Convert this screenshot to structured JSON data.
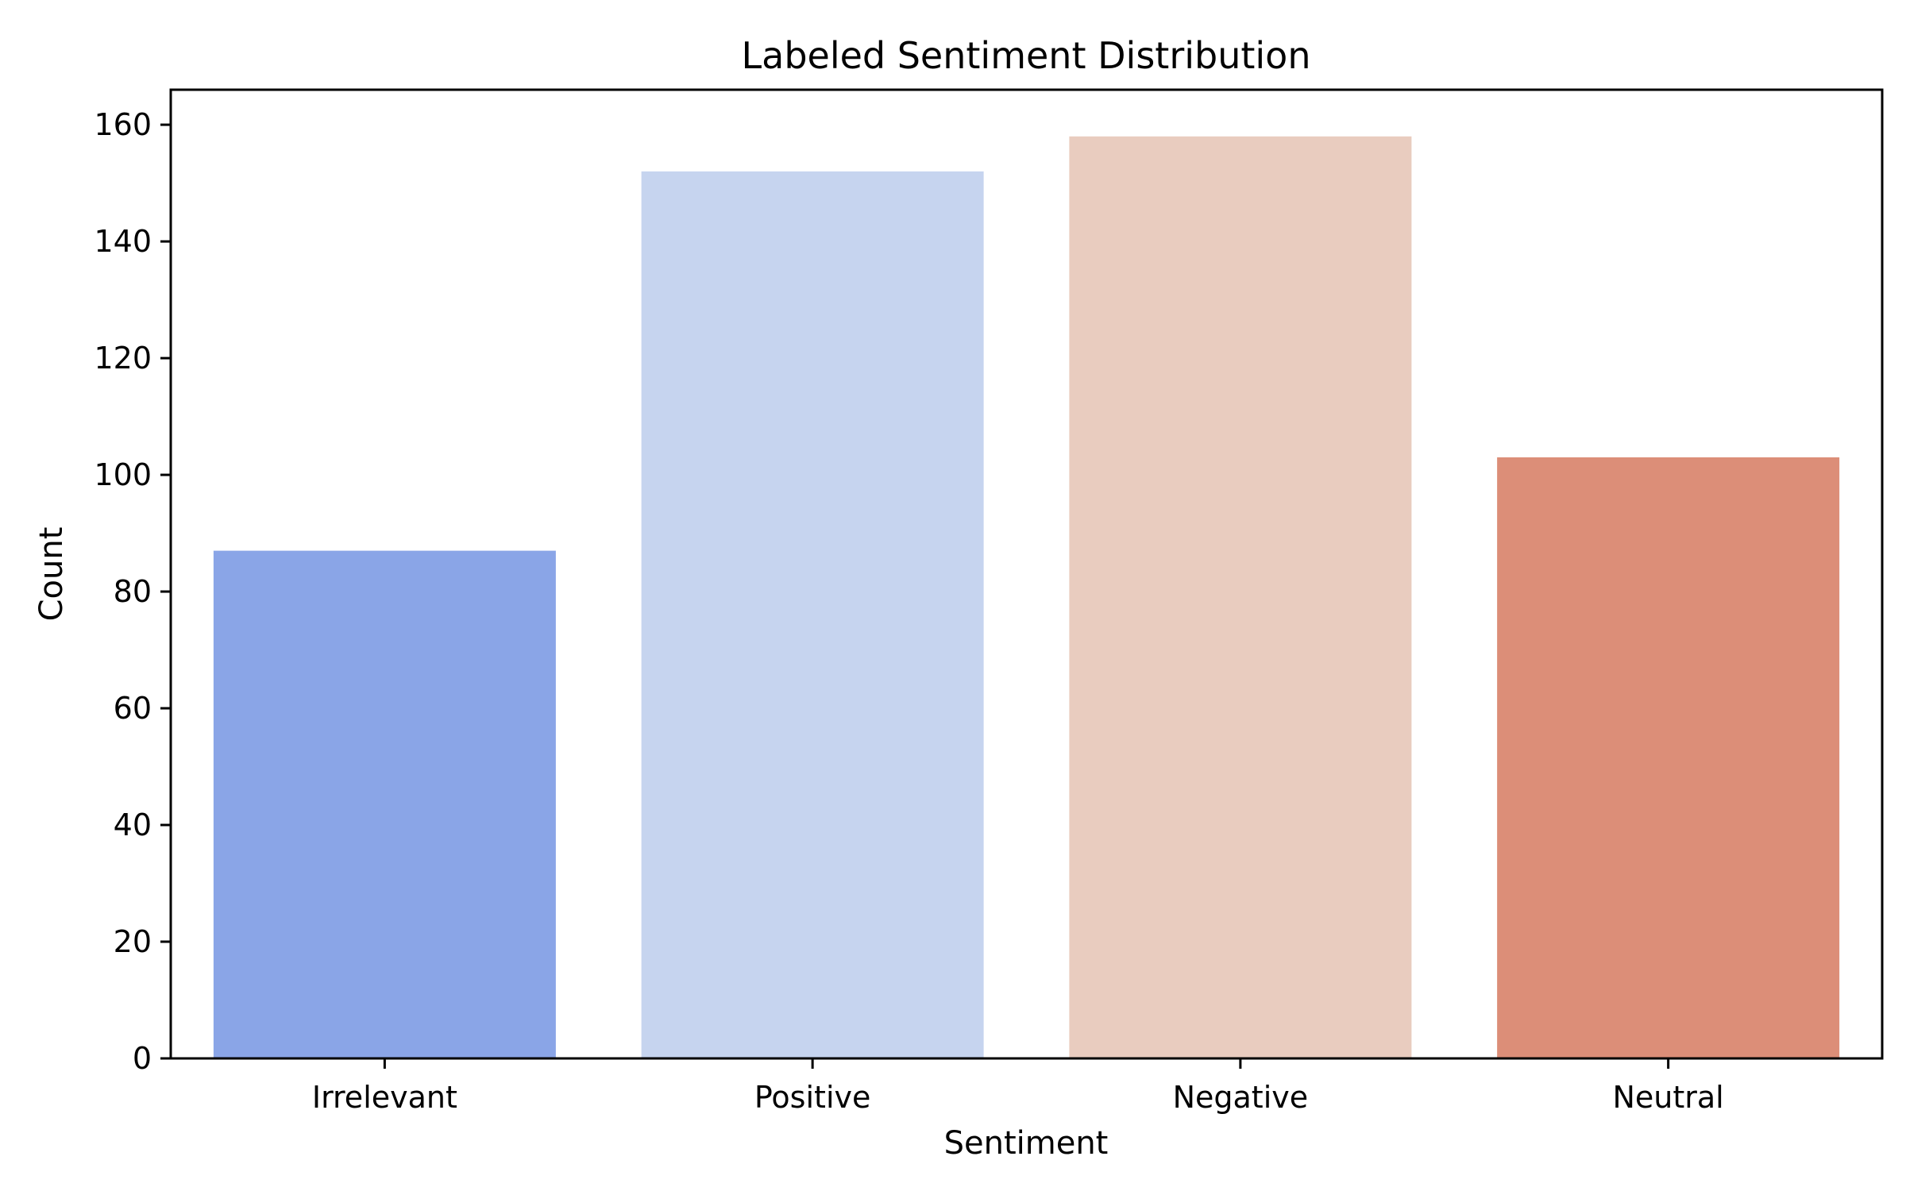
{
  "chart_data": {
    "type": "bar",
    "title": "Labeled Sentiment Distribution",
    "xlabel": "Sentiment",
    "ylabel": "Count",
    "categories": [
      "Irrelevant",
      "Positive",
      "Negative",
      "Neutral"
    ],
    "values": [
      87,
      152,
      158,
      103
    ],
    "colors": [
      "#8aa5e7",
      "#c6d4ef",
      "#e9ccbf",
      "#dc8e78"
    ],
    "yticks": [
      0,
      20,
      40,
      60,
      80,
      100,
      120,
      140,
      160
    ],
    "ylim": [
      0,
      166
    ],
    "grid": false,
    "legend": "none"
  }
}
